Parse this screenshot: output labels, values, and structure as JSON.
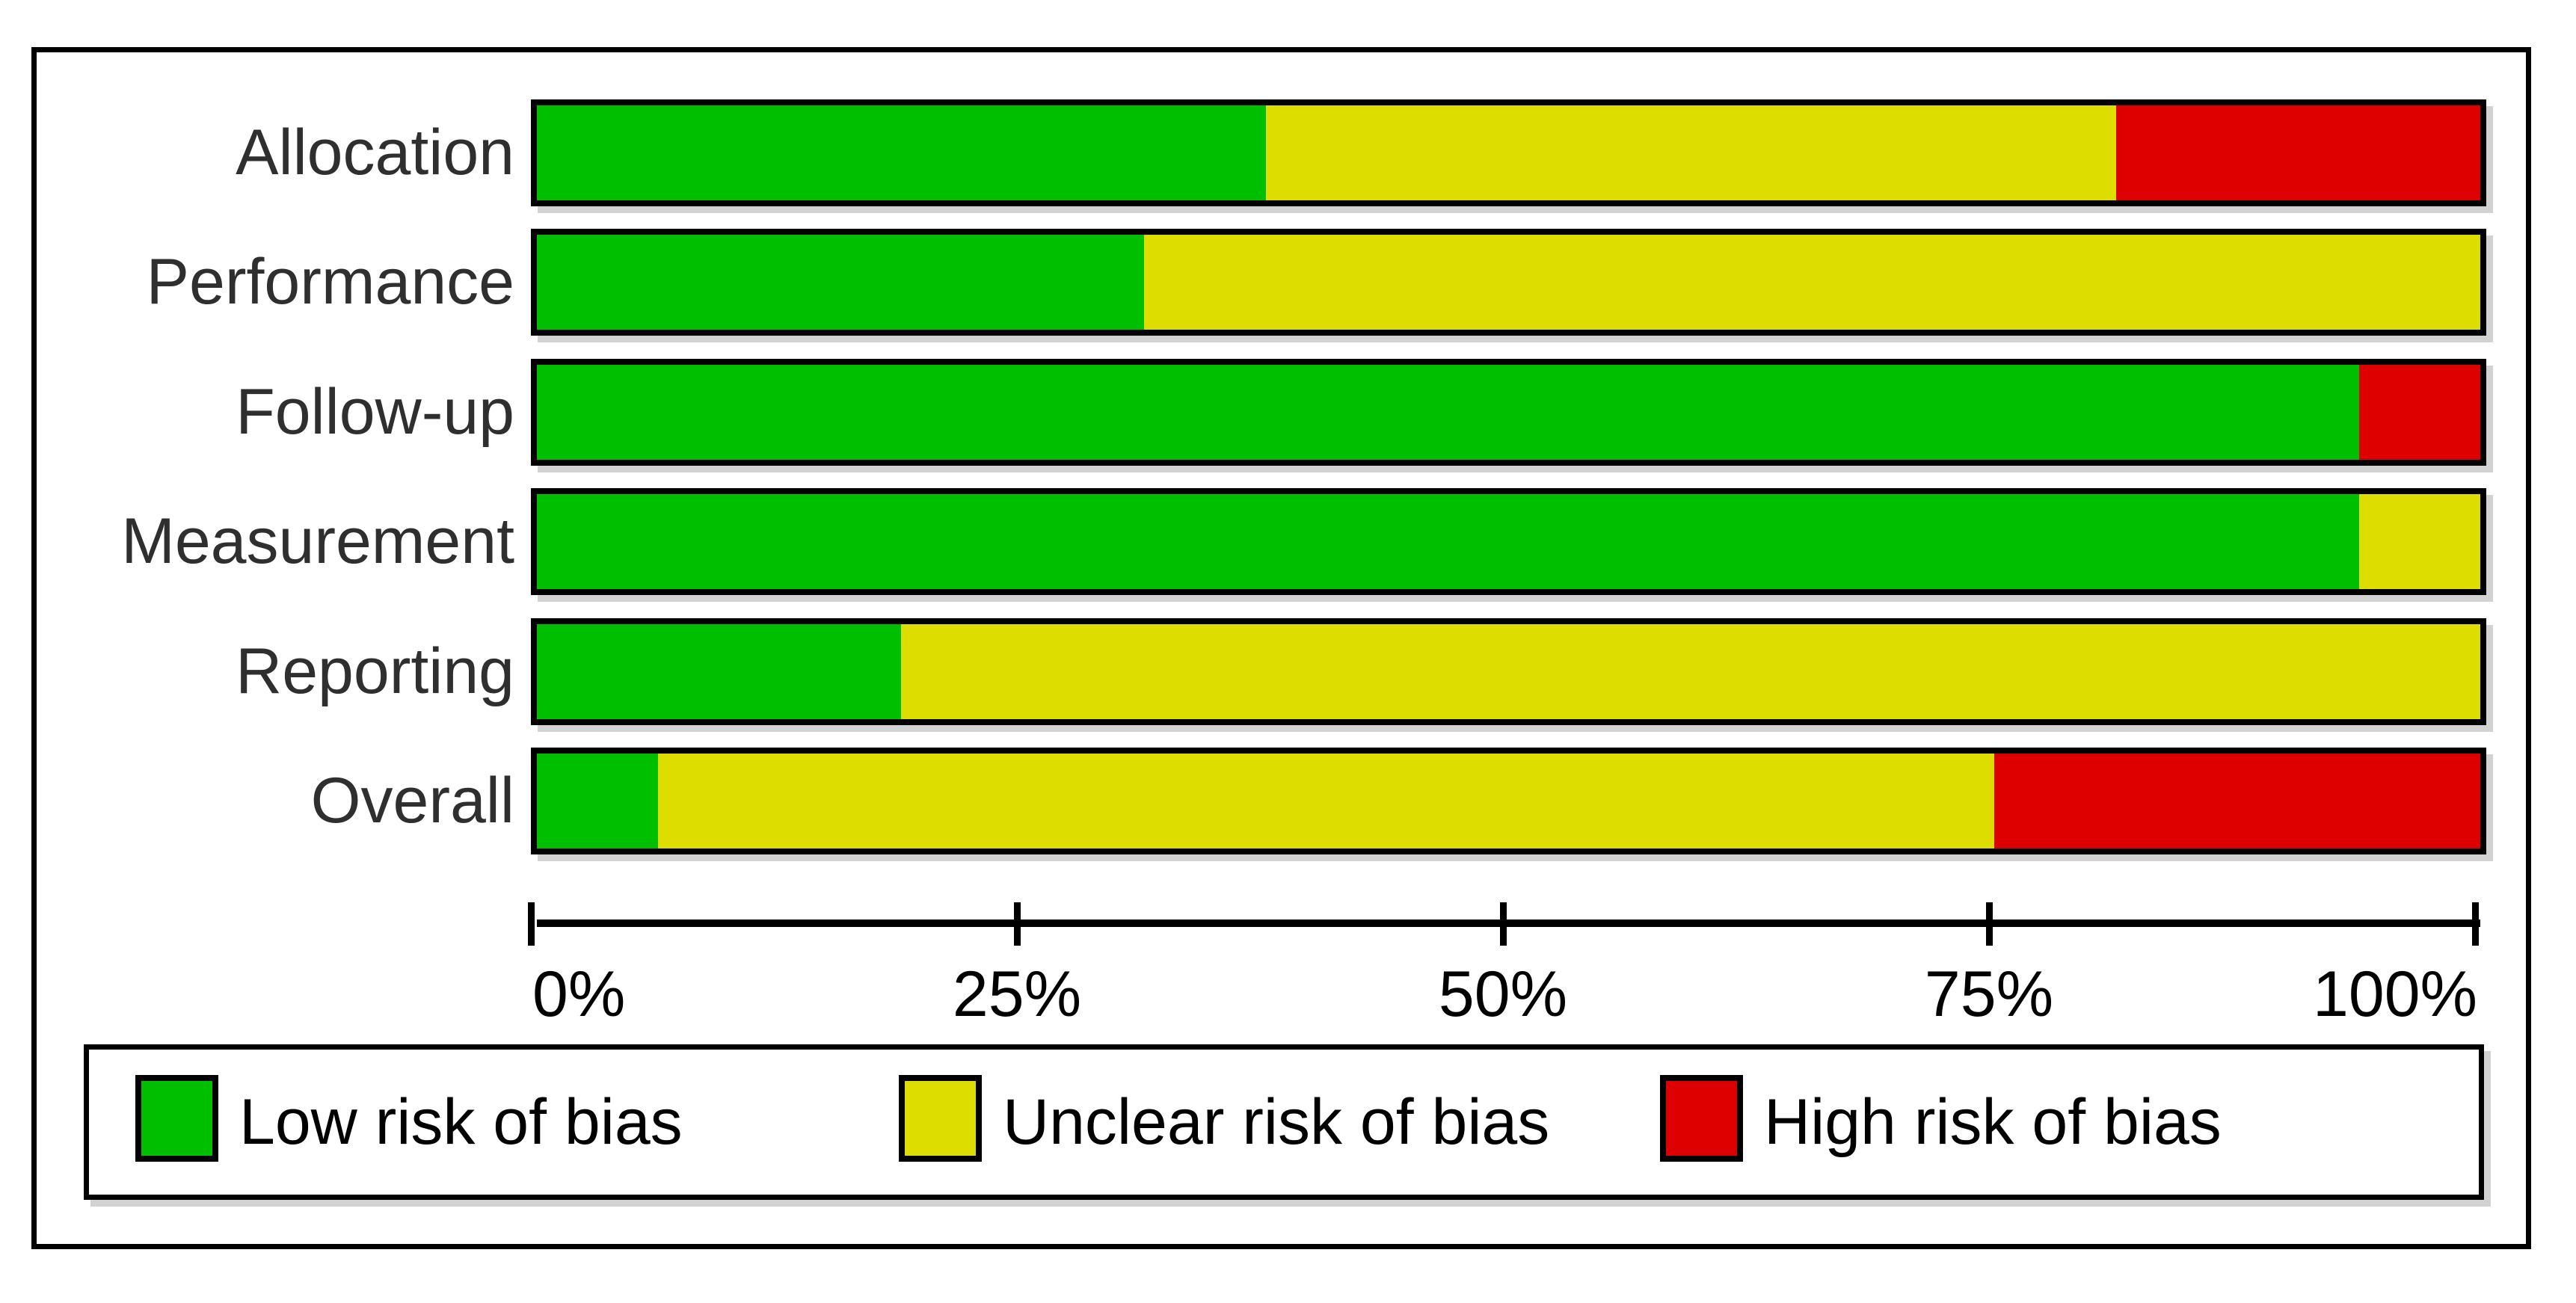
{
  "chart_data": {
    "type": "bar",
    "orientation": "horizontal",
    "stacked": true,
    "title": "",
    "xlabel": "",
    "ylabel": "",
    "xlim": [
      0,
      100
    ],
    "unit": "%",
    "grid": false,
    "categories": [
      "Allocation",
      "Performance",
      "Follow-up",
      "Measurement",
      "Reporting",
      "Overall"
    ],
    "series": [
      {
        "name": "Low risk of bias",
        "color": "#00BE00",
        "values": [
          37.5,
          31.25,
          93.75,
          93.75,
          18.75,
          6.25
        ]
      },
      {
        "name": "Unclear risk of bias",
        "color": "#DDDE00",
        "values": [
          43.75,
          68.75,
          0,
          6.25,
          81.25,
          68.75
        ]
      },
      {
        "name": "High risk of bias",
        "color": "#DE0000",
        "values": [
          18.75,
          0,
          6.25,
          0,
          0,
          25.0
        ]
      }
    ],
    "x_tick_labels": [
      "0%",
      "25%",
      "50%",
      "75%",
      "100%"
    ],
    "x_tick_values": [
      0,
      25,
      50,
      75,
      100
    ],
    "legend_position": "bottom",
    "legend_entries": [
      "Low risk of bias",
      "Unclear risk of bias",
      "High risk of bias"
    ]
  },
  "styles": {
    "bar_border_color": "#000000",
    "category_label_color": "#2F2F2F",
    "axis_color": "#000000"
  }
}
